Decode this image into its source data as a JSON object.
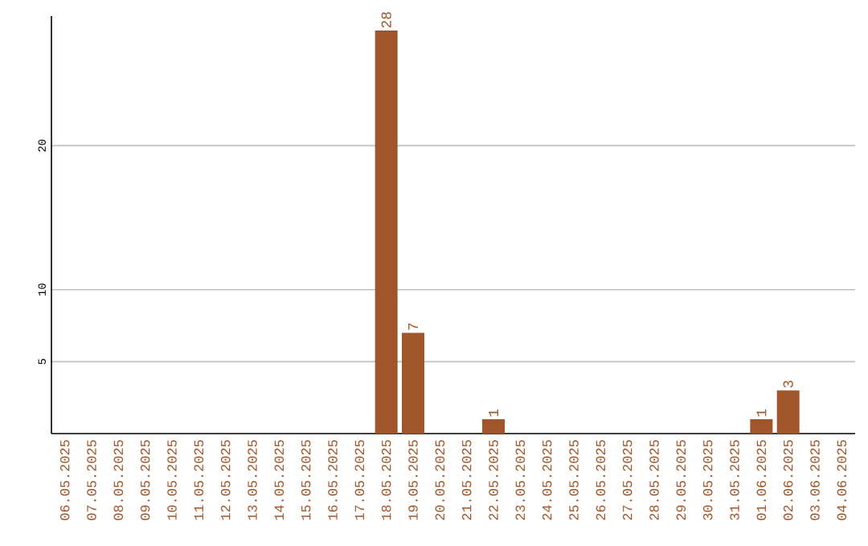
{
  "chart_data": {
    "type": "bar",
    "categories": [
      "06.05.2025",
      "07.05.2025",
      "08.05.2025",
      "09.05.2025",
      "10.05.2025",
      "11.05.2025",
      "12.05.2025",
      "13.05.2025",
      "14.05.2025",
      "15.05.2025",
      "16.05.2025",
      "17.05.2025",
      "18.05.2025",
      "19.05.2025",
      "20.05.2025",
      "21.05.2025",
      "22.05.2025",
      "23.05.2025",
      "24.05.2025",
      "25.05.2025",
      "26.05.2025",
      "27.05.2025",
      "28.05.2025",
      "29.05.2025",
      "30.05.2025",
      "31.05.2025",
      "01.06.2025",
      "02.06.2025",
      "03.06.2025",
      "04.06.2025"
    ],
    "values": [
      0,
      0,
      0,
      0,
      0,
      0,
      0,
      0,
      0,
      0,
      0,
      0,
      28,
      7,
      0,
      0,
      1,
      0,
      0,
      0,
      0,
      0,
      0,
      0,
      0,
      0,
      1,
      3,
      0,
      0
    ],
    "value_labels": [
      null,
      null,
      null,
      null,
      null,
      null,
      null,
      null,
      null,
      null,
      null,
      null,
      "28",
      "7",
      null,
      null,
      "1",
      null,
      null,
      null,
      null,
      null,
      null,
      null,
      null,
      null,
      "1",
      "3",
      null,
      null
    ],
    "color": "#a0562a",
    "ylim": [
      0,
      29
    ],
    "yticks": [
      5,
      10,
      20
    ],
    "grid": "y"
  }
}
